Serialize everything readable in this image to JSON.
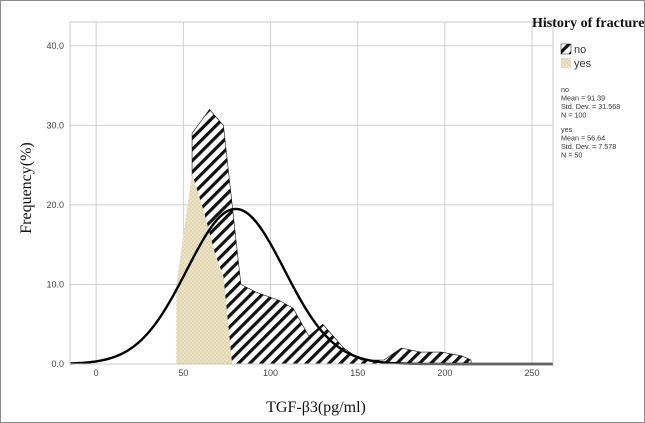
{
  "chart_data": {
    "type": "area",
    "xlabel": "TGF-β3(pg/ml)",
    "ylabel": "Frequency(%)",
    "legend_title": "History of fracture",
    "legend_position": "top-right",
    "grid": true,
    "xlim": [
      -15,
      262
    ],
    "ylim": [
      0,
      43
    ],
    "x_ticks": [
      "0",
      "50",
      "100",
      "150",
      "200",
      "250"
    ],
    "y_ticks": [
      "0.0",
      "10.0",
      "20.0",
      "30.0",
      "40.0"
    ],
    "series": [
      {
        "name": "no",
        "pattern": "diagonal-hatch",
        "stats": [
          "no",
          "Mean = 91.39",
          "Std. Dev. = 31.568",
          "N = 100"
        ],
        "points": [
          [
            55,
            0
          ],
          [
            55,
            29
          ],
          [
            65,
            32
          ],
          [
            73,
            30
          ],
          [
            83,
            10
          ],
          [
            92,
            9
          ],
          [
            105,
            8
          ],
          [
            113,
            7
          ],
          [
            122,
            3.5
          ],
          [
            130,
            5
          ],
          [
            142,
            2
          ],
          [
            152,
            0.5
          ],
          [
            165,
            0.5
          ],
          [
            175,
            2
          ],
          [
            186,
            1.5
          ],
          [
            198,
            1.5
          ],
          [
            210,
            1
          ],
          [
            215,
            0.5
          ],
          [
            215,
            0
          ]
        ]
      },
      {
        "name": "yes",
        "pattern": "dotted",
        "stats": [
          "yes",
          "Mean = 56.64",
          "Std. Dev. = 7.578",
          "N = 50"
        ],
        "points": [
          [
            46,
            0
          ],
          [
            46,
            10
          ],
          [
            55,
            24
          ],
          [
            62,
            19
          ],
          [
            68,
            14
          ],
          [
            73,
            11
          ],
          [
            78,
            0
          ]
        ]
      }
    ],
    "normal_curve": {
      "mean": 80,
      "peak": 19.5,
      "sigma": 28
    },
    "colors": {
      "curve": "#000000",
      "no_fill": "#111111",
      "yes_fill": "#ece3c4",
      "yes_dots": "#b8aa7c",
      "grid": "#d0d0d0",
      "frame": "#c8c8c8",
      "border": "#8c8c8c"
    }
  }
}
